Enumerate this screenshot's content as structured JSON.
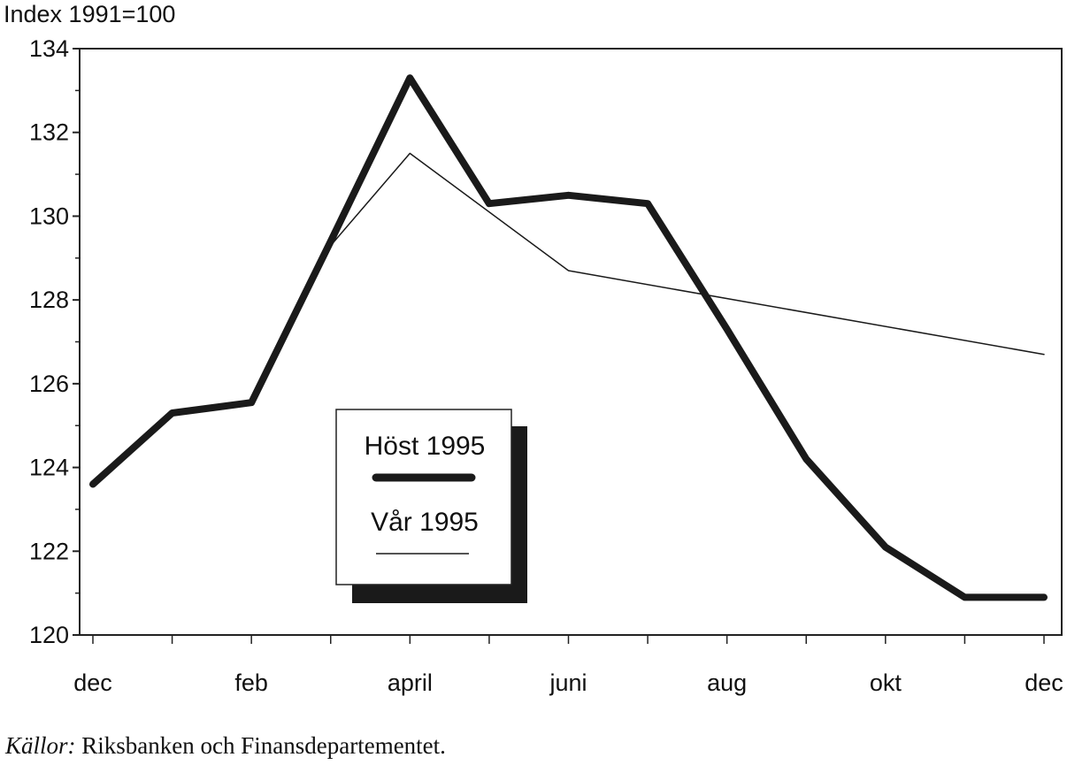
{
  "chart_data": {
    "type": "line",
    "ylabel": "Index 1991=100",
    "ylim": [
      120,
      134
    ],
    "yticks": [
      120,
      122,
      124,
      126,
      128,
      130,
      132,
      134
    ],
    "xlim": [
      0,
      12
    ],
    "x_tick_labels": [
      {
        "x": 0,
        "label": "dec"
      },
      {
        "x": 2,
        "label": "feb"
      },
      {
        "x": 4,
        "label": "april"
      },
      {
        "x": 6,
        "label": "juni"
      },
      {
        "x": 8,
        "label": "aug"
      },
      {
        "x": 10,
        "label": "okt"
      },
      {
        "x": 12,
        "label": "dec"
      }
    ],
    "series": [
      {
        "name": "Höst 1995",
        "style": "thick",
        "x": [
          0,
          1,
          2,
          3,
          4,
          5,
          6,
          7,
          8,
          9,
          10,
          11,
          12
        ],
        "values": [
          123.6,
          125.3,
          125.55,
          129.4,
          133.3,
          130.3,
          130.5,
          130.3,
          127.3,
          124.2,
          122.1,
          120.9,
          120.9
        ]
      },
      {
        "name": "Vår 1995",
        "style": "thin",
        "x": [
          3,
          4,
          6,
          12
        ],
        "values": [
          129.3,
          131.5,
          128.7,
          126.7
        ]
      }
    ],
    "legend": {
      "position": "center-left",
      "shadow": true
    },
    "grid": false
  },
  "source": {
    "label": "Källor:",
    "text": " Riksbanken och Finansdepartementet."
  },
  "colors": {
    "line": "#1a1a1a",
    "frame": "#222222",
    "shadow": "#1a1a1a"
  }
}
